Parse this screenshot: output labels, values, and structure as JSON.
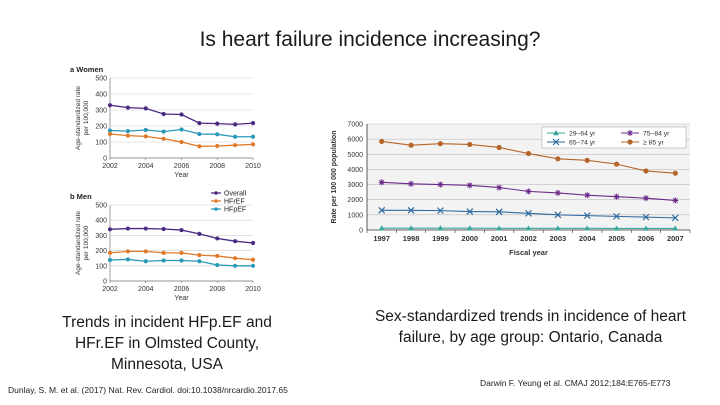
{
  "slide": {
    "title": "Is heart failure incidence increasing?",
    "left_caption": "Trends in incident HFp.EF and HFr.EF in Olmsted County, Minnesota, USA",
    "right_caption": "Sex-standardized trends in incidence of heart failure, by age group: Ontario, Canada",
    "left_citation": "Dunlay, S. M. et al. (2017) Nat. Rev. Cardiol. doi:10.1038/nrcardio.2017.65",
    "right_citation": "Darwin F. Yeung et al. CMAJ 2012;184:E765-E773"
  },
  "colors": {
    "overall": "#4b2a83",
    "hfref": "#e07a2a",
    "hfpef": "#2a98b8",
    "age_29_64": "#3aa89a",
    "age_65_74": "#2e6a9e",
    "age_75_84": "#6b2a8a",
    "age_85": "#b5652a"
  },
  "chart_data": [
    {
      "type": "line",
      "panel_label": "a Women",
      "ylabel": "Age-standardized rate per 100,000",
      "xlabel": "Year",
      "x": [
        2002,
        2003,
        2004,
        2005,
        2006,
        2007,
        2008,
        2009,
        2010
      ],
      "xticks": [
        "2002",
        "2004",
        "2006",
        "2008",
        "2010"
      ],
      "yticks": [
        "0",
        "100",
        "200",
        "300",
        "400",
        "500"
      ],
      "ylim": [
        0,
        500
      ],
      "series": [
        {
          "name": "Overall",
          "color_key": "overall",
          "values": [
            330,
            315,
            310,
            275,
            272,
            218,
            215,
            210,
            218
          ]
        },
        {
          "name": "HFpEF",
          "color_key": "hfpef",
          "values": [
            172,
            168,
            175,
            165,
            178,
            150,
            148,
            133,
            133
          ]
        },
        {
          "name": "HFrEF",
          "color_key": "hfref",
          "values": [
            150,
            140,
            135,
            120,
            100,
            73,
            75,
            80,
            85
          ]
        }
      ]
    },
    {
      "type": "line",
      "panel_label": "b Men",
      "ylabel": "Age-standardized rate per 100,000",
      "xlabel": "Year",
      "x": [
        2002,
        2003,
        2004,
        2005,
        2006,
        2007,
        2008,
        2009,
        2010
      ],
      "xticks": [
        "2002",
        "2004",
        "2006",
        "2008",
        "2010"
      ],
      "yticks": [
        "0",
        "100",
        "200",
        "300",
        "400",
        "500"
      ],
      "ylim": [
        0,
        500
      ],
      "legend": [
        "Overall",
        "HFrEF",
        "HFpEF"
      ],
      "legend_position": "top-right",
      "series": [
        {
          "name": "Overall",
          "color_key": "overall",
          "values": [
            340,
            345,
            345,
            342,
            335,
            310,
            280,
            262,
            250
          ]
        },
        {
          "name": "HFrEF",
          "color_key": "hfref",
          "values": [
            185,
            195,
            195,
            185,
            185,
            170,
            165,
            150,
            140
          ]
        },
        {
          "name": "HFpEF",
          "color_key": "hfpef",
          "values": [
            138,
            142,
            130,
            135,
            135,
            130,
            105,
            100,
            100
          ]
        }
      ]
    },
    {
      "type": "line",
      "ylabel": "Rate per 100 000 population",
      "xlabel": "Fiscal year",
      "x": [
        1997,
        1998,
        1999,
        2000,
        2001,
        2002,
        2003,
        2004,
        2005,
        2006,
        2007
      ],
      "xticks": [
        "1997",
        "1998",
        "1999",
        "2000",
        "2001",
        "2002",
        "2003",
        "2004",
        "2005",
        "2006",
        "2007"
      ],
      "yticks": [
        "0",
        "1000",
        "2000",
        "3000",
        "4000",
        "5000",
        "6000",
        "7000"
      ],
      "ylim": [
        0,
        7000
      ],
      "legend": [
        "29–64 yr",
        "65–74 yr",
        "75–84 yr",
        "≥ 85 yr"
      ],
      "legend_position": "top-right",
      "series": [
        {
          "name": "29–64 yr",
          "color_key": "age_29_64",
          "marker": "triangle",
          "values": [
            120,
            120,
            120,
            120,
            110,
            110,
            110,
            110,
            100,
            100,
            100
          ]
        },
        {
          "name": "65–74 yr",
          "color_key": "age_65_74",
          "marker": "x",
          "values": [
            1300,
            1300,
            1280,
            1220,
            1200,
            1100,
            1000,
            950,
            900,
            850,
            800
          ]
        },
        {
          "name": "75–84 yr",
          "color_key": "age_75_84",
          "marker": "star",
          "values": [
            3150,
            3050,
            3000,
            2950,
            2800,
            2550,
            2450,
            2300,
            2200,
            2100,
            1950
          ]
        },
        {
          "name": "≥ 85 yr",
          "color_key": "age_85",
          "marker": "circle",
          "values": [
            5850,
            5600,
            5700,
            5650,
            5450,
            5050,
            4700,
            4600,
            4350,
            3900,
            3750
          ]
        }
      ]
    }
  ]
}
